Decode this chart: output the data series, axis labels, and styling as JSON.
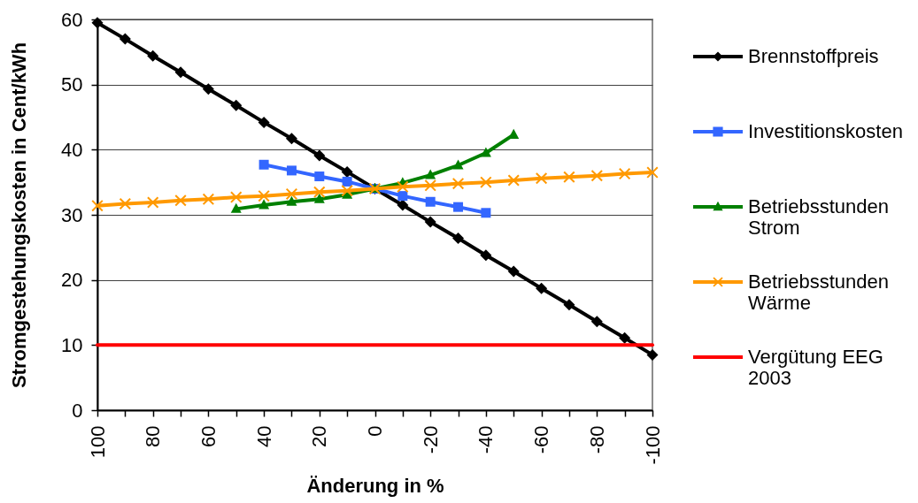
{
  "chart_data": {
    "type": "line",
    "xlabel": "Änderung in %",
    "ylabel": "Stromgestehungskosten in Cent/kWh",
    "x": [
      100,
      90,
      80,
      70,
      60,
      50,
      40,
      30,
      20,
      10,
      0,
      -10,
      -20,
      -30,
      -40,
      -50,
      -60,
      -70,
      -80,
      -90,
      -100
    ],
    "xlim": [
      100,
      -100
    ],
    "xticks": [
      100,
      {
        "value": 90,
        "label": null
      },
      80,
      {
        "value": 70,
        "label": null
      },
      60,
      {
        "value": 50,
        "label": null
      },
      40,
      {
        "value": 30,
        "label": null
      },
      20,
      {
        "value": 10,
        "label": null
      },
      0,
      {
        "value": -10,
        "label": null
      },
      -20,
      {
        "value": -30,
        "label": null
      },
      -40,
      {
        "value": -50,
        "label": null
      },
      -60,
      {
        "value": -70,
        "label": null
      },
      -80,
      {
        "value": -90,
        "label": null
      },
      -100
    ],
    "ylim": [
      0,
      60
    ],
    "yticks": [
      0,
      10,
      20,
      30,
      40,
      50,
      60
    ],
    "grid": "y",
    "legend": "right",
    "line_style": "solid",
    "series": [
      {
        "name": "Brennstoffpreis",
        "color": "#000000",
        "marker": "diamond",
        "values": [
          59.5,
          57.0,
          54.4,
          51.9,
          49.3,
          46.8,
          44.2,
          41.7,
          39.1,
          36.6,
          34.0,
          31.5,
          28.9,
          26.4,
          23.8,
          21.3,
          18.7,
          16.2,
          13.6,
          11.1,
          8.5
        ]
      },
      {
        "name": "Investitionskosten",
        "color": "#3366ff",
        "marker": "square",
        "x": [
          40,
          30,
          20,
          10,
          0,
          -10,
          -20,
          -30,
          -40
        ],
        "values": [
          37.7,
          36.8,
          35.9,
          35.1,
          34.0,
          32.9,
          32.0,
          31.2,
          30.3
        ]
      },
      {
        "name": "Betriebsstunden Strom",
        "color": "#008000",
        "marker": "triangle",
        "x": [
          50,
          40,
          30,
          20,
          10,
          0,
          -10,
          -20,
          -30,
          -40,
          -50
        ],
        "values": [
          30.9,
          31.5,
          32.0,
          32.4,
          33.1,
          34.0,
          34.9,
          36.1,
          37.6,
          39.5,
          42.3
        ]
      },
      {
        "name": "Betriebsstunden Wärme",
        "color": "#ff9900",
        "marker": "cross",
        "values": [
          31.4,
          31.7,
          31.9,
          32.2,
          32.4,
          32.7,
          32.9,
          33.2,
          33.5,
          33.7,
          34.0,
          34.3,
          34.5,
          34.8,
          35.0,
          35.3,
          35.6,
          35.8,
          36.0,
          36.3,
          36.5
        ]
      },
      {
        "name": "Vergütung EEG 2003",
        "color": "#ff0000",
        "marker": "none",
        "x": [
          100,
          -100
        ],
        "values": [
          10,
          10
        ]
      }
    ]
  }
}
